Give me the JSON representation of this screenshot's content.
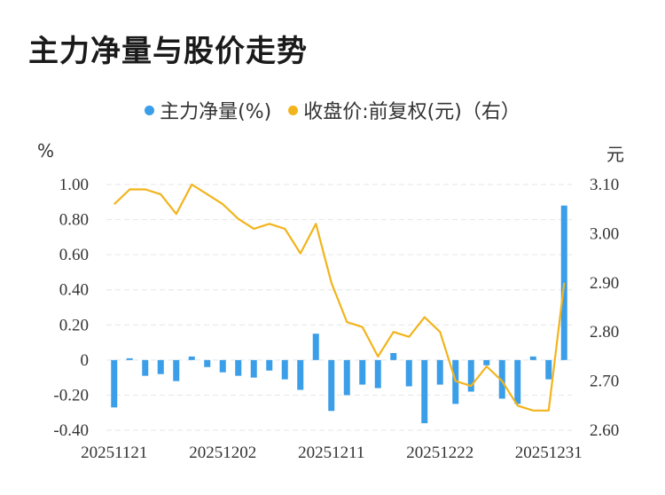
{
  "title": "主力净量与股价走势",
  "legend": {
    "left_label": "主力净量(%)",
    "right_label": "收盘价:前复权(元)（右）"
  },
  "units": {
    "left": "%",
    "right": "元"
  },
  "colors": {
    "bar": "#3a9ee8",
    "line": "#f2b41c",
    "grid": "#e6e6e6"
  },
  "chart_data": {
    "type": "bar",
    "title": "主力净量与股价走势",
    "x_tick_labels": [
      "20251121",
      "20251202",
      "20251211",
      "20251222",
      "20251231"
    ],
    "left_axis": {
      "ylim": [
        -0.4,
        1.0
      ],
      "ticks": [
        "1.00",
        "0.80",
        "0.60",
        "0.40",
        "0.20",
        "0",
        "-0.20",
        "-0.40"
      ]
    },
    "right_axis": {
      "ylim": [
        2.6,
        3.1
      ],
      "ticks": [
        "3.10",
        "3.00",
        "2.90",
        "2.80",
        "2.70",
        "2.60"
      ]
    },
    "grid": true,
    "legend_position": "top",
    "series": [
      {
        "name": "主力净量(%)",
        "type": "bar",
        "axis": "left",
        "values": [
          -0.27,
          0.01,
          -0.09,
          -0.08,
          -0.12,
          0.02,
          -0.04,
          -0.07,
          -0.09,
          -0.1,
          -0.06,
          -0.11,
          -0.17,
          0.15,
          -0.29,
          -0.2,
          -0.14,
          -0.16,
          0.04,
          -0.15,
          -0.36,
          -0.14,
          -0.25,
          -0.18,
          -0.03,
          -0.22,
          -0.25,
          0.02,
          -0.11,
          0.88
        ]
      },
      {
        "name": "收盘价:前复权(元)（右）",
        "type": "line",
        "axis": "right",
        "values": [
          3.06,
          3.09,
          3.09,
          3.08,
          3.04,
          3.1,
          3.08,
          3.06,
          3.03,
          3.01,
          3.02,
          3.01,
          2.96,
          3.02,
          2.9,
          2.82,
          2.81,
          2.75,
          2.8,
          2.79,
          2.83,
          2.8,
          2.7,
          2.69,
          2.73,
          2.7,
          2.65,
          2.64,
          2.64,
          2.9
        ]
      }
    ]
  }
}
